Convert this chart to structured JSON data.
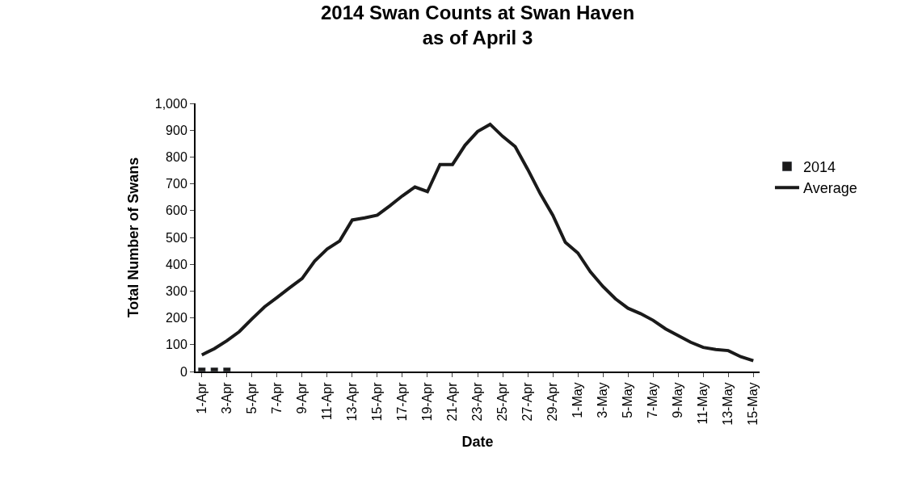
{
  "chart_data": {
    "type": "bar",
    "title": "2014 Swan Counts at Swan Haven\nas of April 3",
    "xlabel": "Date",
    "ylabel": "Total Number of Swans",
    "categories": [
      "1-Apr",
      null,
      "3-Apr",
      null,
      "5-Apr",
      null,
      "7-Apr",
      null,
      "9-Apr",
      null,
      "11-Apr",
      null,
      "13-Apr",
      null,
      "15-Apr",
      null,
      "17-Apr",
      null,
      "19-Apr",
      null,
      "21-Apr",
      null,
      "23-Apr",
      null,
      "25-Apr",
      null,
      "27-Apr",
      null,
      "29-Apr",
      null,
      "1-May",
      null,
      "3-May",
      null,
      "5-May",
      null,
      "7-May",
      null,
      "9-May",
      null,
      "11-May",
      null,
      "13-May",
      null,
      "15-May"
    ],
    "series": [
      {
        "name": "2014",
        "color": "#1a1a1a",
        "values": [
          15,
          15,
          15,
          null,
          null,
          null,
          null,
          null,
          null,
          null,
          null,
          null,
          null,
          null,
          null,
          null,
          null,
          null,
          null,
          null,
          null,
          null,
          null,
          null,
          null,
          null,
          null,
          null,
          null,
          null,
          null,
          null,
          null,
          null,
          null,
          null,
          null,
          null,
          null,
          null,
          null,
          null,
          null,
          null,
          null
        ]
      },
      {
        "name": "Average",
        "type": "line",
        "color": "#1a1a1a",
        "values": [
          62,
          85,
          115,
          149,
          196,
          241,
          276,
          312,
          347,
          412,
          457,
          487,
          565,
          573,
          583,
          618,
          655,
          688,
          671,
          772,
          772,
          844,
          895,
          922,
          877,
          839,
          754,
          663,
          583,
          482,
          442,
          372,
          317,
          271,
          236,
          216,
          191,
          159,
          134,
          109,
          90,
          82,
          78,
          55,
          40
        ]
      }
    ],
    "ylim": [
      0,
      1000
    ],
    "yticks": [
      0,
      100,
      200,
      300,
      400,
      500,
      600,
      700,
      800,
      900,
      {
        "value": 1000,
        "label": "1,000"
      }
    ],
    "legend": "right",
    "marker": "none",
    "line_style": "solid"
  }
}
